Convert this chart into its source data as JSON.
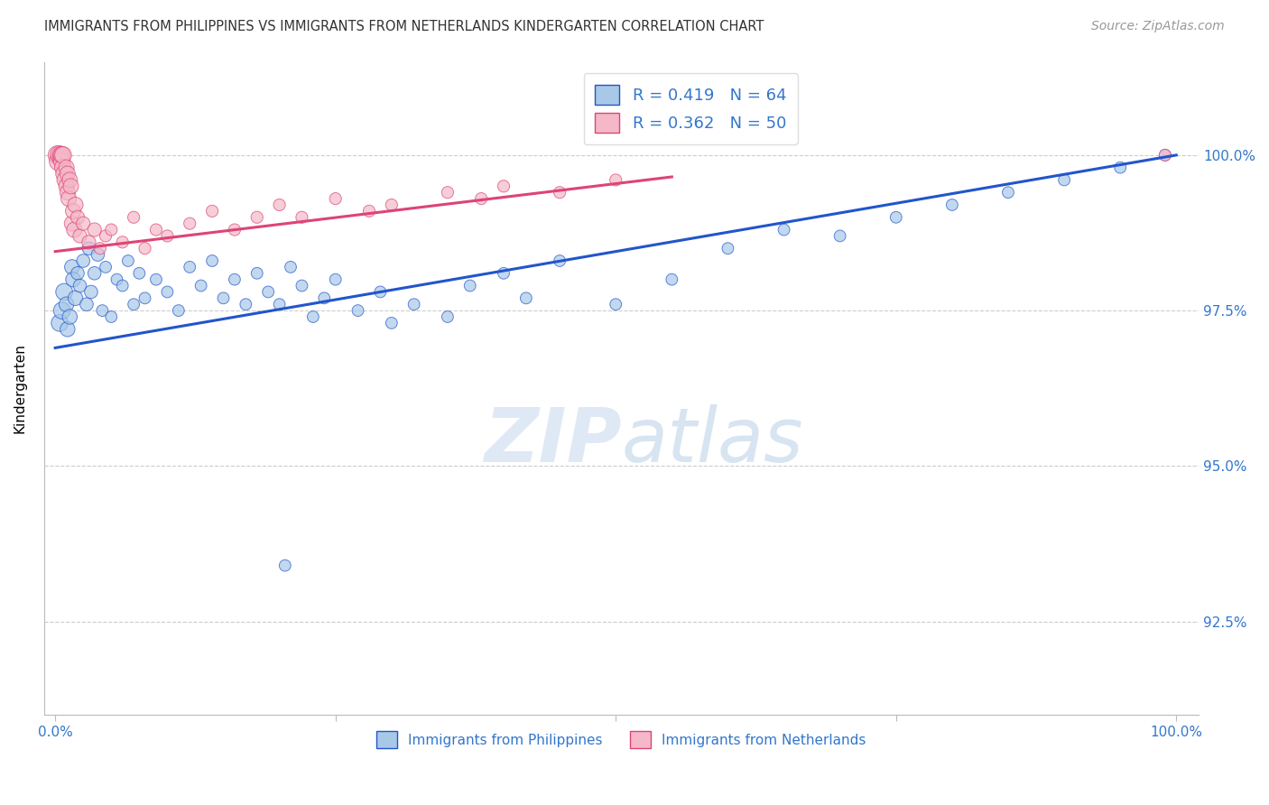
{
  "title": "IMMIGRANTS FROM PHILIPPINES VS IMMIGRANTS FROM NETHERLANDS KINDERGARTEN CORRELATION CHART",
  "source": "Source: ZipAtlas.com",
  "ylabel": "Kindergarten",
  "y_range": [
    91.0,
    101.5
  ],
  "x_range": [
    -1.0,
    102.0
  ],
  "legend_label_blue": "R = 0.419   N = 64",
  "legend_label_pink": "R = 0.362   N = 50",
  "legend_label_blue_bottom": "Immigrants from Philippines",
  "legend_label_pink_bottom": "Immigrants from Netherlands",
  "blue_color": "#A8C8E8",
  "pink_color": "#F4B8C8",
  "trend_blue": "#2255CC",
  "trend_pink": "#DD4477",
  "grid_color": "#CCCCCC",
  "title_color": "#333333",
  "axis_color": "#3377CC",
  "blue_scatter": [
    [
      0.4,
      97.3
    ],
    [
      0.6,
      97.5
    ],
    [
      0.8,
      97.8
    ],
    [
      1.0,
      97.6
    ],
    [
      1.1,
      97.2
    ],
    [
      1.3,
      97.4
    ],
    [
      1.5,
      98.2
    ],
    [
      1.6,
      98.0
    ],
    [
      1.8,
      97.7
    ],
    [
      2.0,
      98.1
    ],
    [
      2.2,
      97.9
    ],
    [
      2.5,
      98.3
    ],
    [
      2.8,
      97.6
    ],
    [
      3.0,
      98.5
    ],
    [
      3.2,
      97.8
    ],
    [
      3.5,
      98.1
    ],
    [
      3.8,
      98.4
    ],
    [
      4.2,
      97.5
    ],
    [
      4.5,
      98.2
    ],
    [
      5.0,
      97.4
    ],
    [
      5.5,
      98.0
    ],
    [
      6.0,
      97.9
    ],
    [
      6.5,
      98.3
    ],
    [
      7.0,
      97.6
    ],
    [
      7.5,
      98.1
    ],
    [
      8.0,
      97.7
    ],
    [
      9.0,
      98.0
    ],
    [
      10.0,
      97.8
    ],
    [
      11.0,
      97.5
    ],
    [
      12.0,
      98.2
    ],
    [
      13.0,
      97.9
    ],
    [
      14.0,
      98.3
    ],
    [
      15.0,
      97.7
    ],
    [
      16.0,
      98.0
    ],
    [
      17.0,
      97.6
    ],
    [
      18.0,
      98.1
    ],
    [
      19.0,
      97.8
    ],
    [
      20.0,
      97.6
    ],
    [
      21.0,
      98.2
    ],
    [
      22.0,
      97.9
    ],
    [
      23.0,
      97.4
    ],
    [
      24.0,
      97.7
    ],
    [
      25.0,
      98.0
    ],
    [
      27.0,
      97.5
    ],
    [
      29.0,
      97.8
    ],
    [
      30.0,
      97.3
    ],
    [
      32.0,
      97.6
    ],
    [
      35.0,
      97.4
    ],
    [
      37.0,
      97.9
    ],
    [
      40.0,
      98.1
    ],
    [
      42.0,
      97.7
    ],
    [
      45.0,
      98.3
    ],
    [
      50.0,
      97.6
    ],
    [
      55.0,
      98.0
    ],
    [
      60.0,
      98.5
    ],
    [
      65.0,
      98.8
    ],
    [
      70.0,
      98.7
    ],
    [
      75.0,
      99.0
    ],
    [
      80.0,
      99.2
    ],
    [
      85.0,
      99.4
    ],
    [
      90.0,
      99.6
    ],
    [
      95.0,
      99.8
    ],
    [
      99.0,
      100.0
    ],
    [
      20.5,
      93.4
    ]
  ],
  "pink_scatter": [
    [
      0.2,
      100.0
    ],
    [
      0.3,
      99.9
    ],
    [
      0.4,
      100.0
    ],
    [
      0.5,
      99.95
    ],
    [
      0.5,
      100.0
    ],
    [
      0.6,
      99.9
    ],
    [
      0.6,
      100.0
    ],
    [
      0.7,
      99.8
    ],
    [
      0.7,
      100.0
    ],
    [
      0.8,
      99.7
    ],
    [
      0.9,
      99.6
    ],
    [
      1.0,
      99.5
    ],
    [
      1.0,
      99.8
    ],
    [
      1.1,
      99.4
    ],
    [
      1.1,
      99.7
    ],
    [
      1.2,
      99.3
    ],
    [
      1.3,
      99.6
    ],
    [
      1.4,
      99.5
    ],
    [
      1.5,
      98.9
    ],
    [
      1.6,
      99.1
    ],
    [
      1.7,
      98.8
    ],
    [
      1.8,
      99.2
    ],
    [
      2.0,
      99.0
    ],
    [
      2.2,
      98.7
    ],
    [
      2.5,
      98.9
    ],
    [
      3.0,
      98.6
    ],
    [
      3.5,
      98.8
    ],
    [
      4.0,
      98.5
    ],
    [
      4.5,
      98.7
    ],
    [
      5.0,
      98.8
    ],
    [
      6.0,
      98.6
    ],
    [
      7.0,
      99.0
    ],
    [
      8.0,
      98.5
    ],
    [
      9.0,
      98.8
    ],
    [
      10.0,
      98.7
    ],
    [
      12.0,
      98.9
    ],
    [
      14.0,
      99.1
    ],
    [
      16.0,
      98.8
    ],
    [
      18.0,
      99.0
    ],
    [
      20.0,
      99.2
    ],
    [
      22.0,
      99.0
    ],
    [
      25.0,
      99.3
    ],
    [
      28.0,
      99.1
    ],
    [
      30.0,
      99.2
    ],
    [
      35.0,
      99.4
    ],
    [
      38.0,
      99.3
    ],
    [
      40.0,
      99.5
    ],
    [
      45.0,
      99.4
    ],
    [
      50.0,
      99.6
    ],
    [
      99.0,
      100.0
    ]
  ],
  "blue_trend_x": [
    0,
    100
  ],
  "blue_trend_y": [
    96.9,
    100.0
  ],
  "pink_trend_x": [
    0,
    50
  ],
  "pink_trend_y": [
    98.5,
    99.6
  ]
}
